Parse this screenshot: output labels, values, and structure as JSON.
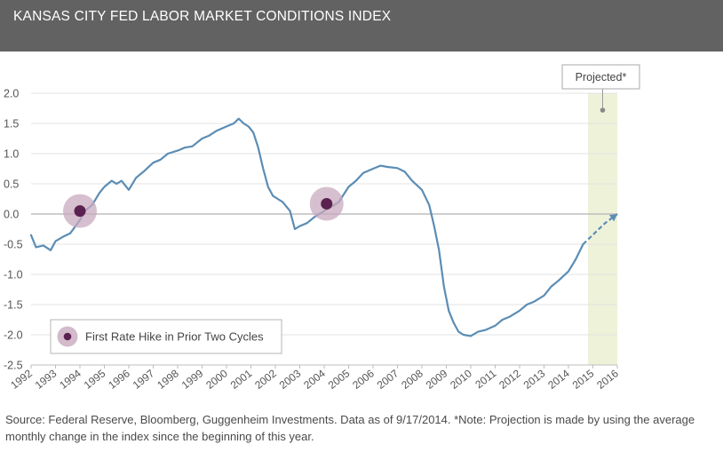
{
  "header": {
    "title": "KANSAS CITY FED LABOR MARKET CONDITIONS INDEX"
  },
  "footer": {
    "source": "Source: Federal Reserve, Bloomberg, Guggenheim Investments. Data as of 9/17/2014. *Note: Projection is made by using the average monthly change in the index since the beginning of this year."
  },
  "colors": {
    "line": "#5b8db5",
    "marker_fill": "#5b2150",
    "marker_halo": "#c8aabe",
    "projected_band": "#eef2d9",
    "header_bg": "#626262"
  },
  "chart_data": {
    "type": "line",
    "title": "KANSAS CITY FED LABOR MARKET CONDITIONS INDEX",
    "xlabel": "",
    "ylabel": "",
    "xlim": [
      1992,
      2016
    ],
    "ylim": [
      -2.5,
      2.0
    ],
    "yticks": [
      "2.0",
      "1.5",
      "1.0",
      "0.5",
      "0.0",
      "-0.5",
      "-1.0",
      "-1.5",
      "-2.0",
      "-2.5"
    ],
    "xticks": [
      "1992",
      "1993",
      "1994",
      "1995",
      "1996",
      "1997",
      "1998",
      "1999",
      "2000",
      "2001",
      "2002",
      "2003",
      "2004",
      "2005",
      "2006",
      "2007",
      "2008",
      "2009",
      "2010",
      "2011",
      "2012",
      "2013",
      "2014",
      "2015",
      "2016"
    ],
    "grid": "horizontal",
    "series": [
      {
        "type": "line",
        "x": [
          1992.0,
          1992.2,
          1992.5,
          1992.8,
          1993.0,
          1993.3,
          1993.6,
          1994.0,
          1994.2,
          1994.5,
          1994.8,
          1995.0,
          1995.3,
          1995.5,
          1995.7,
          1996.0,
          1996.3,
          1996.6,
          1997.0,
          1997.3,
          1997.6,
          1998.0,
          1998.3,
          1998.6,
          1999.0,
          1999.3,
          1999.6,
          2000.0,
          2000.3,
          2000.5,
          2000.7,
          2000.9,
          2001.1,
          2001.3,
          2001.5,
          2001.7,
          2001.9,
          2002.1,
          2002.3,
          2002.6,
          2002.8,
          2003.0,
          2003.3,
          2003.6,
          2004.0,
          2004.3,
          2004.6,
          2005.0,
          2005.3,
          2005.6,
          2006.0,
          2006.3,
          2006.6,
          2007.0,
          2007.3,
          2007.6,
          2008.0,
          2008.3,
          2008.5,
          2008.7,
          2008.9,
          2009.1,
          2009.3,
          2009.5,
          2009.7,
          2010.0,
          2010.3,
          2010.6,
          2011.0,
          2011.3,
          2011.6,
          2012.0,
          2012.3,
          2012.6,
          2013.0,
          2013.3,
          2013.6,
          2014.0,
          2014.3,
          2014.6
        ],
        "y": [
          -0.35,
          -0.55,
          -0.52,
          -0.6,
          -0.45,
          -0.38,
          -0.32,
          -0.1,
          0.05,
          0.15,
          0.35,
          0.45,
          0.55,
          0.5,
          0.55,
          0.4,
          0.6,
          0.7,
          0.85,
          0.9,
          1.0,
          1.05,
          1.1,
          1.12,
          1.25,
          1.3,
          1.38,
          1.45,
          1.5,
          1.58,
          1.5,
          1.45,
          1.35,
          1.1,
          0.75,
          0.45,
          0.3,
          0.25,
          0.2,
          0.05,
          -0.25,
          -0.2,
          -0.15,
          -0.05,
          0.05,
          0.12,
          0.2,
          0.45,
          0.55,
          0.68,
          0.75,
          0.8,
          0.78,
          0.76,
          0.7,
          0.55,
          0.4,
          0.15,
          -0.2,
          -0.6,
          -1.2,
          -1.6,
          -1.8,
          -1.95,
          -2.0,
          -2.02,
          -1.95,
          -1.92,
          -1.85,
          -1.75,
          -1.7,
          -1.6,
          -1.5,
          -1.45,
          -1.35,
          -1.2,
          -1.1,
          -0.95,
          -0.75,
          -0.5
        ]
      },
      {
        "type": "projection",
        "x": [
          2014.6,
          2015.5,
          2016.0
        ],
        "y": [
          -0.5,
          -0.15,
          0.0
        ]
      }
    ],
    "markers": [
      {
        "x": 1994.0,
        "y": 0.05
      },
      {
        "x": 2004.1,
        "y": 0.17
      }
    ],
    "projected_band": {
      "x0": 2014.8,
      "x1": 2016.0
    },
    "legend": {
      "label": "First Rate Hike in Prior Two Cycles",
      "position": "bottom-left"
    },
    "annotation": {
      "label": "Projected*"
    }
  }
}
